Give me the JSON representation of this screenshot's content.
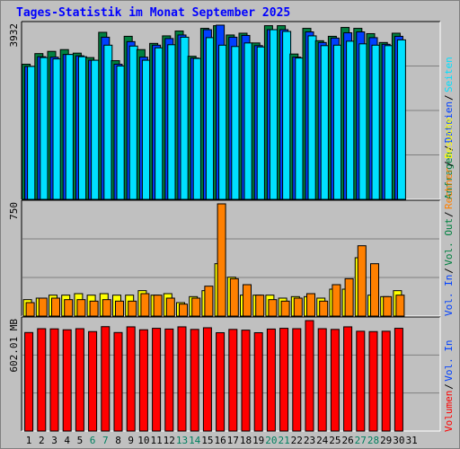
{
  "chart_data": {
    "type": "bar",
    "title": "Tages-Statistik im Monat September 2025",
    "categories": [
      "1",
      "2",
      "3",
      "4",
      "5",
      "6",
      "7",
      "8",
      "9",
      "10",
      "11",
      "12",
      "13",
      "14",
      "15",
      "16",
      "17",
      "18",
      "19",
      "20",
      "21",
      "22",
      "23",
      "24",
      "25",
      "26",
      "27",
      "28",
      "29",
      "30",
      "31"
    ],
    "weekend_days": [
      "6",
      "7",
      "13",
      "14",
      "20",
      "21",
      "27",
      "28"
    ],
    "panels": [
      {
        "name": "requests",
        "max_label": "3932",
        "ylim": [
          0,
          3932
        ],
        "series": [
          {
            "name": "Anfragen",
            "color": "#008040",
            "values": [
              3050,
              3290,
              3340,
              3380,
              3300,
              3200,
              3770,
              3130,
              3680,
              3380,
              3520,
              3690,
              3800,
              3230,
              3860,
              3920,
              3710,
              3750,
              3530,
              3920,
              3920,
              3280,
              3860,
              3580,
              3680,
              3880,
              3860,
              3740,
              3540,
              3750
            ]
          },
          {
            "name": "Dateien",
            "color": "#0040ff",
            "values": [
              3000,
              3220,
              3210,
              3270,
              3240,
              3140,
              3660,
              3050,
              3560,
              3210,
              3480,
              3630,
              3710,
              3190,
              3830,
              3932,
              3660,
              3700,
              3470,
              3830,
              3830,
              3210,
              3780,
              3540,
              3640,
              3760,
              3780,
              3650,
              3500,
              3680
            ]
          },
          {
            "name": "Seiten",
            "color": "#00e0ff",
            "values": [
              3000,
              3200,
              3170,
              3270,
              3220,
              3140,
              3480,
              3010,
              3460,
              3140,
              3420,
              3490,
              3660,
              3180,
              3650,
              3480,
              3450,
              3530,
              3440,
              3830,
              3790,
              3190,
              3690,
              3470,
              3480,
              3570,
              3510,
              3480,
              3470,
              3600
            ]
          }
        ]
      },
      {
        "name": "visits",
        "max_label": "750",
        "ylim": [
          0,
          750
        ],
        "series": [
          {
            "name": "Besuche",
            "color": "#ffff00",
            "values": [
              110,
              120,
              140,
              140,
              150,
              140,
              150,
              140,
              140,
              170,
              140,
              150,
              90,
              130,
              170,
              350,
              260,
              140,
              140,
              140,
              120,
              130,
              130,
              120,
              180,
              180,
              390,
              140,
              130,
              170
            ]
          },
          {
            "name": "Rechner",
            "color": "#ff8000",
            "values": [
              90,
              120,
              120,
              110,
              110,
              100,
              110,
              100,
              100,
              150,
              140,
              120,
              80,
              120,
              200,
              750,
              250,
              210,
              140,
              110,
              100,
              120,
              150,
              100,
              210,
              250,
              470,
              350,
              130,
              140
            ]
          }
        ]
      },
      {
        "name": "volume",
        "max_label": "602.01 MB",
        "ylim": [
          0,
          602.01
        ],
        "series": [
          {
            "name": "Volumen",
            "color": "#ff0000",
            "values": [
              537,
              558,
              557,
              552,
              558,
              542,
              569,
              537,
              568,
              552,
              560,
              556,
              568,
              554,
              563,
              536,
              554,
              550,
              536,
              556,
              560,
              558,
              602,
              558,
              554,
              568,
              544,
              542,
              544,
              560
            ]
          }
        ]
      }
    ],
    "legend_right": [
      {
        "text": "Anfragen",
        "color": "#008040"
      },
      {
        "text": "Dateien",
        "color": "#0040ff"
      },
      {
        "text": "Seiten",
        "color": "#00e0ff"
      },
      {
        "text": "Besuche",
        "color": "#ffff00"
      },
      {
        "text": "Rechner",
        "color": "#ff8000"
      },
      {
        "text": "Vol. Out",
        "color": "#008040"
      },
      {
        "text": "Vol. In",
        "color": "#0040ff"
      },
      {
        "text": "Volumen",
        "color": "#ff0000"
      }
    ],
    "title_color": "#0000ff",
    "background": "#c0c0c0",
    "plot_background": "#c0c0c0",
    "weekday_label_color": "#000000",
    "weekend_label_color": "#00805f",
    "grid": true
  }
}
